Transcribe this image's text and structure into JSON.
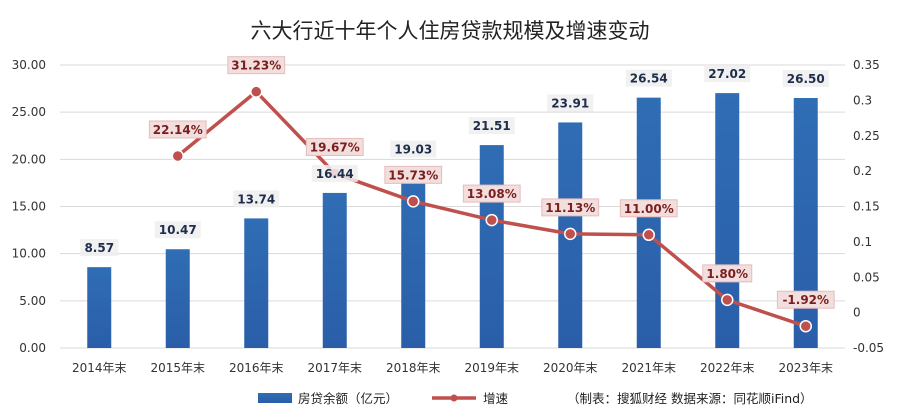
{
  "chart_data": {
    "type": "bar",
    "title": "六大行近十年个人住房贷款规模及增速变动",
    "categories": [
      "2014年末",
      "2015年末",
      "2016年末",
      "2017年末",
      "2018年末",
      "2019年末",
      "2020年末",
      "2021年末",
      "2022年末",
      "2023年末"
    ],
    "series": [
      {
        "name": "房贷余额（亿元）",
        "type": "bar",
        "axis": "left",
        "color": "#2f6db5",
        "values": [
          8.57,
          10.47,
          13.74,
          16.44,
          19.03,
          21.51,
          23.91,
          26.54,
          27.02,
          26.5
        ],
        "labels": [
          "8.57",
          "10.47",
          "13.74",
          "16.44",
          "19.03",
          "21.51",
          "23.91",
          "26.54",
          "27.02",
          "26.50"
        ]
      },
      {
        "name": "增速",
        "type": "line",
        "axis": "right",
        "color": "#c0504d",
        "values": [
          null,
          0.2214,
          0.3123,
          0.1967,
          0.1573,
          0.1308,
          0.1113,
          0.11,
          0.018,
          -0.0192
        ],
        "labels": [
          "",
          "22.14%",
          "31.23%",
          "19.67%",
          "15.73%",
          "13.08%",
          "11.13%",
          "11.00%",
          "1.80%",
          "-1.92%"
        ]
      }
    ],
    "y_left": {
      "min": 0,
      "max": 30,
      "ticks": [
        "0.00",
        "5.00",
        "10.00",
        "15.00",
        "20.00",
        "25.00",
        "30.00"
      ],
      "tick_values": [
        0,
        5,
        10,
        15,
        20,
        25,
        30
      ]
    },
    "y_right": {
      "min": -0.05,
      "max": 0.35,
      "ticks": [
        "-0.05",
        "0",
        "0.05",
        "0.1",
        "0.15",
        "0.2",
        "0.25",
        "0.3",
        "0.35"
      ],
      "tick_values": [
        -0.05,
        0,
        0.05,
        0.1,
        0.15,
        0.2,
        0.25,
        0.3,
        0.35
      ]
    },
    "grid": true,
    "legend_position": "bottom",
    "source_note": "（制表：搜狐财经   数据来源：同花顺iFind）"
  }
}
